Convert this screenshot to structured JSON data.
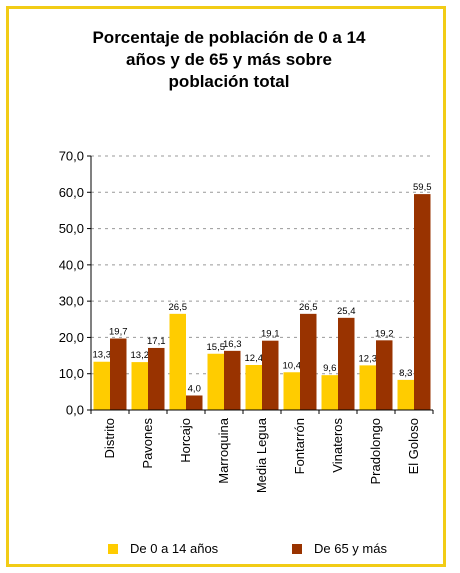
{
  "chart_data": {
    "type": "bar",
    "title_lines": [
      "Porcentaje de población de 0 a 14",
      "años y de 65 y más sobre",
      "población total"
    ],
    "categories": [
      "Distrito",
      "Pavones",
      "Horcajo",
      "Marroquina",
      "Media Legua",
      "Fontarrón",
      "Vinateros",
      "Pradolongo",
      "El Goloso"
    ],
    "series": [
      {
        "name": "De 0 a 14 años",
        "color": "#ffcc00",
        "values": [
          13.3,
          13.2,
          26.5,
          15.5,
          12.4,
          10.4,
          9.6,
          12.3,
          8.3
        ],
        "labels": [
          "13,3",
          "13,2",
          "26,5",
          "15,5",
          "12,4",
          "10,4",
          "9,6",
          "12,3",
          "8,3"
        ]
      },
      {
        "name": "De 65 y más",
        "color": "#993300",
        "values": [
          19.7,
          17.1,
          4.0,
          16.3,
          19.1,
          26.5,
          25.4,
          19.2,
          59.5
        ],
        "labels": [
          "19,7",
          "17,1",
          "4,0",
          "16,3",
          "19,1",
          "26,5",
          "25,4",
          "19,2",
          "59,5"
        ]
      }
    ],
    "ylim": [
      0,
      70
    ],
    "yticks": [
      0,
      10,
      20,
      30,
      40,
      50,
      60,
      70
    ],
    "ytick_labels": [
      "0,0",
      "10,0",
      "20,0",
      "30,0",
      "40,0",
      "50,0",
      "60,0",
      "70,0"
    ],
    "grid": true,
    "legend_position": "bottom"
  }
}
